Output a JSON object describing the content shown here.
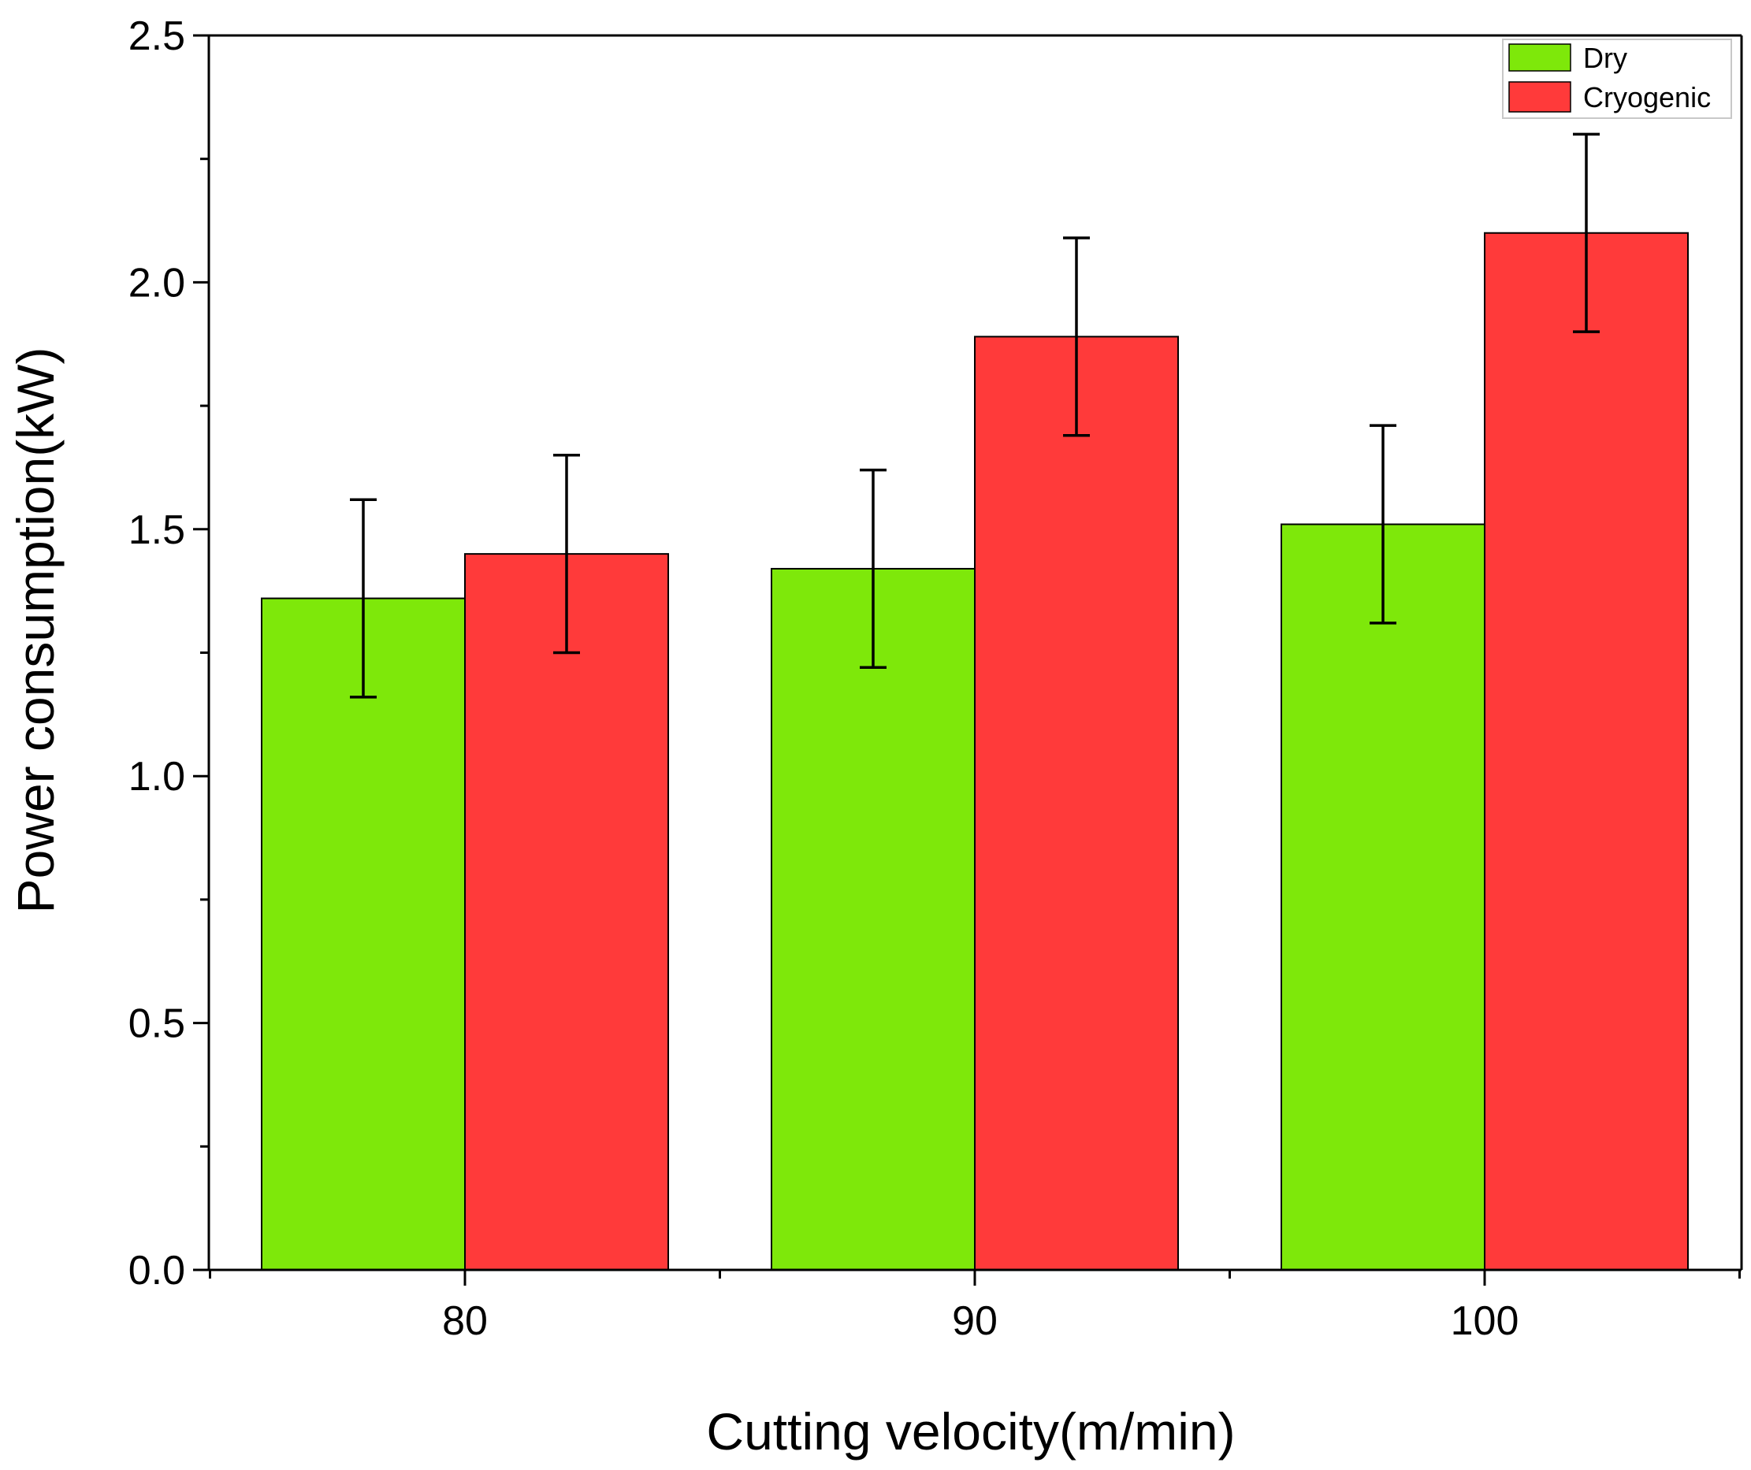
{
  "chart_data": {
    "type": "bar",
    "title": "",
    "xlabel": "Cutting velocity(m/min)",
    "ylabel": "Power consumption(kW)",
    "categories": [
      "80",
      "90",
      "100"
    ],
    "ylim": [
      0,
      2.5
    ],
    "yticks": [
      "0.0",
      "0.5",
      "1.0",
      "1.5",
      "2.0",
      "2.5"
    ],
    "ytick_values": [
      0,
      0.5,
      1.0,
      1.5,
      2.0,
      2.5
    ],
    "legend_position": "top-right",
    "series": [
      {
        "name": "Dry",
        "color": "#7ee80a",
        "values": [
          1.36,
          1.42,
          1.51
        ],
        "error": [
          0.2,
          0.2,
          0.2
        ]
      },
      {
        "name": "Cryogenic",
        "color": "#ff3a3a",
        "values": [
          1.45,
          1.89,
          2.1
        ],
        "error": [
          0.2,
          0.2,
          0.2
        ]
      }
    ]
  }
}
